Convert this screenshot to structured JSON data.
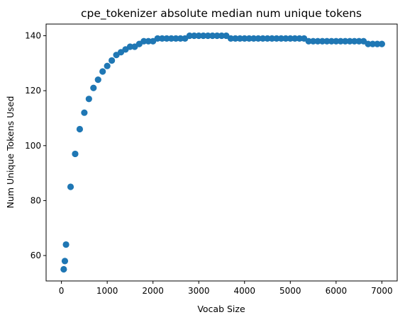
{
  "chart_data": {
    "type": "scatter",
    "title": "cpe_tokenizer absolute median num unique tokens",
    "xlabel": "Vocab Size",
    "ylabel": "Num Unique Tokens Used",
    "xlim": [
      -335,
      7335
    ],
    "ylim": [
      50.75,
      144.25
    ],
    "xticks": [
      0,
      1000,
      2000,
      3000,
      4000,
      5000,
      6000,
      7000
    ],
    "yticks": [
      60,
      80,
      100,
      120,
      140
    ],
    "grid": false,
    "legend": "none",
    "marker_color": "#1f77b4",
    "series": [
      {
        "x": [
          50,
          75,
          100,
          200,
          300,
          400,
          500,
          600,
          700,
          800,
          900,
          1000,
          1100,
          1200,
          1300,
          1400,
          1500,
          1600,
          1700,
          1800,
          1900,
          2000,
          2100,
          2200,
          2300,
          2400,
          2500,
          2600,
          2700,
          2800,
          2900,
          3000,
          3100,
          3200,
          3300,
          3400,
          3500,
          3600,
          3700,
          3800,
          3900,
          4000,
          4100,
          4200,
          4300,
          4400,
          4500,
          4600,
          4700,
          4800,
          4900,
          5000,
          5100,
          5200,
          5300,
          5400,
          5500,
          5600,
          5700,
          5800,
          5900,
          6000,
          6100,
          6200,
          6300,
          6400,
          6500,
          6600,
          6700,
          6800,
          6900,
          7000
        ],
        "y": [
          55,
          58,
          64,
          85,
          97,
          106,
          112,
          117,
          121,
          124,
          127,
          129,
          131,
          133,
          134,
          135,
          136,
          136,
          137,
          138,
          138,
          138,
          139,
          139,
          139,
          139,
          139,
          139,
          139,
          140,
          140,
          140,
          140,
          140,
          140,
          140,
          140,
          140,
          139,
          139,
          139,
          139,
          139,
          139,
          139,
          139,
          139,
          139,
          139,
          139,
          139,
          139,
          139,
          139,
          139,
          138,
          138,
          138,
          138,
          138,
          138,
          138,
          138,
          138,
          138,
          138,
          138,
          138,
          137,
          137,
          137,
          137
        ]
      }
    ]
  }
}
